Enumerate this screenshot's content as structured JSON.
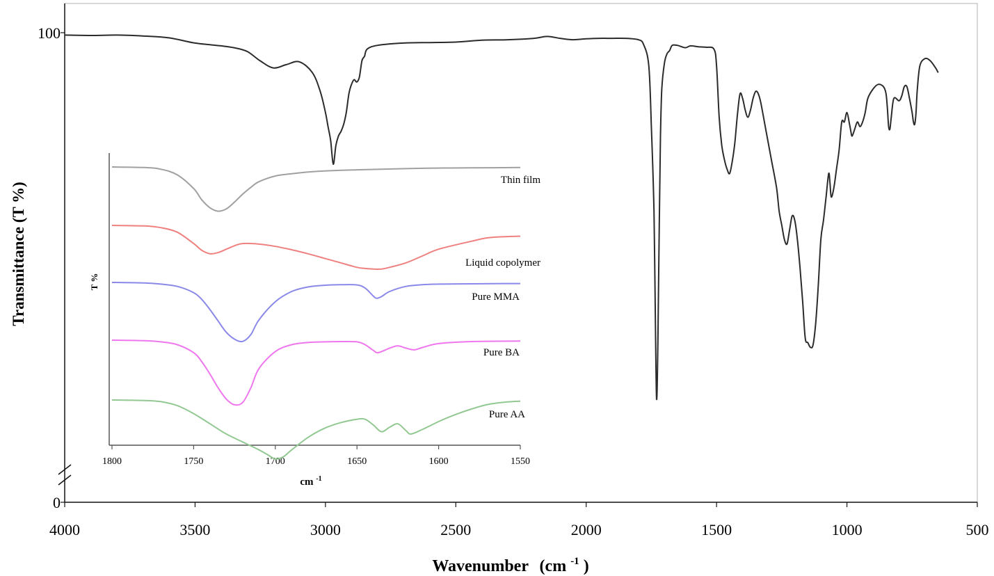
{
  "chart_data": [
    {
      "type": "line",
      "title": "",
      "xlabel": "Wavenumber",
      "xlabel_unit": "(cm",
      "xlabel_unit_sup": "-1",
      "xlabel_unit_close": ")",
      "ylabel": "Transmittance  (T %)",
      "xlim": [
        4000,
        500
      ],
      "x_reversed": true,
      "ylim": [
        0,
        100
      ],
      "y_axis_break": true,
      "grid": false,
      "x_ticks": [
        4000,
        3500,
        3000,
        2500,
        2000,
        1500,
        1000,
        500
      ],
      "x_tick_labels": [
        "4000",
        "3500",
        "3000",
        "2500",
        "2000",
        "1500",
        "1000",
        "500"
      ],
      "y_ticks": [
        0,
        100
      ],
      "y_tick_labels": [
        "0",
        "100"
      ],
      "series": [
        {
          "color": "#2b2b2b",
          "x": [
            4000,
            3900,
            3800,
            3700,
            3600,
            3500,
            3400,
            3350,
            3300,
            3250,
            3200,
            3150,
            3100,
            3050,
            3020,
            3000,
            2990,
            2980,
            2970,
            2960,
            2950,
            2940,
            2930,
            2920,
            2910,
            2900,
            2890,
            2880,
            2870,
            2860,
            2850,
            2840,
            2800,
            2700,
            2600,
            2500,
            2400,
            2300,
            2200,
            2150,
            2100,
            2050,
            2000,
            1950,
            1900,
            1850,
            1800,
            1780,
            1760,
            1750,
            1740,
            1735,
            1730,
            1725,
            1720,
            1715,
            1710,
            1700,
            1690,
            1680,
            1670,
            1650,
            1620,
            1600,
            1570,
            1540,
            1510,
            1500,
            1490,
            1480,
            1470,
            1460,
            1450,
            1440,
            1430,
            1420,
            1410,
            1400,
            1390,
            1380,
            1370,
            1360,
            1350,
            1340,
            1330,
            1310,
            1290,
            1270,
            1260,
            1250,
            1240,
            1230,
            1220,
            1210,
            1200,
            1190,
            1180,
            1170,
            1160,
            1150,
            1140,
            1130,
            1120,
            1110,
            1100,
            1090,
            1080,
            1070,
            1065,
            1060,
            1050,
            1040,
            1030,
            1020,
            1010,
            1000,
            990,
            985,
            980,
            970,
            960,
            950,
            940,
            930,
            920,
            900,
            880,
            860,
            850,
            845,
            840,
            835,
            830,
            820,
            800,
            790,
            780,
            770,
            760,
            750,
            745,
            740,
            735,
            730,
            720,
            700,
            680,
            660,
            650
          ],
          "values": [
            99.5,
            99.4,
            99.5,
            99.3,
            98.9,
            97.8,
            97.2,
            96.8,
            96,
            94,
            92.5,
            93.2,
            93.8,
            91.5,
            87.5,
            83,
            80,
            77,
            72,
            76,
            78,
            79,
            80.5,
            83,
            87,
            89,
            90,
            89.5,
            90.5,
            94,
            95,
            96.5,
            97.3,
            97.8,
            97.9,
            98,
            98.4,
            98.5,
            98.8,
            99.2,
            98.8,
            98.5,
            98.7,
            98.8,
            98.8,
            98.8,
            98.5,
            97.5,
            93,
            80,
            62,
            40,
            22,
            34,
            58,
            78,
            88,
            93.5,
            95.5,
            96.2,
            97.3,
            97.3,
            96.8,
            97.2,
            97,
            96.9,
            96.5,
            93,
            82,
            76,
            73,
            71,
            70,
            72.5,
            76.5,
            82.5,
            87,
            86,
            83.5,
            82,
            83.5,
            86,
            87.5,
            87,
            85,
            79,
            73,
            67,
            62,
            59,
            56,
            55,
            58,
            61,
            60,
            56,
            50,
            43,
            35,
            34,
            33,
            33.5,
            38,
            46,
            56,
            60,
            65,
            70,
            68,
            65,
            67,
            71,
            75,
            81,
            81,
            83,
            80.5,
            79,
            78,
            79.5,
            81,
            80,
            81,
            83,
            86,
            88,
            89,
            88.5,
            87,
            84,
            80,
            79.5,
            82,
            86,
            85.5,
            86.5,
            88.5,
            88.5,
            86,
            83,
            81,
            80.5,
            83,
            88,
            93,
            94.5,
            94,
            92.5,
            91.5
          ]
        }
      ]
    },
    {
      "type": "line",
      "title": "",
      "xlabel": "cm",
      "xlabel_sup": "-1",
      "ylabel": "T %",
      "xlim": [
        1800,
        1550
      ],
      "x_reversed": true,
      "grid": false,
      "x_ticks": [
        1800,
        1750,
        1700,
        1650,
        1600,
        1550
      ],
      "x_tick_labels": [
        "1800",
        "1750",
        "1700",
        "1650",
        "1600",
        "1550"
      ],
      "series": [
        {
          "name": "Thin film",
          "color": "#a0a0a0",
          "x": [
            1800,
            1780,
            1770,
            1760,
            1750,
            1745,
            1740,
            1735,
            1730,
            1725,
            1720,
            1715,
            1710,
            1700,
            1690,
            1680,
            1670,
            1650,
            1620,
            1600,
            1580,
            1550
          ],
          "values": [
            0,
            0.5,
            2,
            7,
            19,
            29,
            36,
            39,
            37,
            31,
            24,
            18,
            13,
            8,
            6,
            4.5,
            3.5,
            2.5,
            1.5,
            1,
            0.8,
            0.5
          ]
        },
        {
          "name": "Liquid copolymer",
          "color": "#ef8080",
          "x": [
            1800,
            1780,
            1770,
            1760,
            1750,
            1745,
            1740,
            1735,
            1730,
            1725,
            1720,
            1710,
            1700,
            1690,
            1680,
            1670,
            1660,
            1650,
            1645,
            1640,
            1635,
            1630,
            1620,
            1610,
            1600,
            1580,
            1570,
            1560,
            1550
          ],
          "values": [
            0,
            0.5,
            2,
            6,
            16,
            22,
            25,
            24,
            21,
            18,
            16,
            16.5,
            18.5,
            21.5,
            25,
            29,
            33,
            37,
            38,
            38.5,
            38.5,
            37,
            33,
            27,
            21,
            14,
            11,
            10,
            9.5
          ]
        },
        {
          "name": "Pure MMA",
          "color": "#8a88e8",
          "x": [
            1800,
            1780,
            1770,
            1760,
            1750,
            1745,
            1740,
            1735,
            1730,
            1725,
            1720,
            1715,
            1710,
            1700,
            1690,
            1680,
            1670,
            1660,
            1650,
            1645,
            1640,
            1638,
            1635,
            1630,
            1620,
            1610,
            1600,
            1580,
            1560,
            1550
          ],
          "values": [
            0,
            0.5,
            1.5,
            3.5,
            9,
            15,
            24,
            34,
            44,
            50,
            52,
            46,
            33,
            17,
            8,
            4,
            2.5,
            2,
            2.2,
            5,
            12,
            14,
            12.5,
            8,
            3.5,
            2,
            1.5,
            1.2,
            1,
            1
          ]
        },
        {
          "name": "Pure BA",
          "color": "#ee77ee",
          "x": [
            1800,
            1780,
            1770,
            1760,
            1750,
            1745,
            1740,
            1735,
            1730,
            1725,
            1720,
            1715,
            1710,
            1700,
            1690,
            1680,
            1670,
            1660,
            1650,
            1645,
            1640,
            1637,
            1630,
            1625,
            1620,
            1615,
            1610,
            1600,
            1580,
            1550
          ],
          "values": [
            0,
            0.5,
            1.5,
            4,
            11,
            19,
            30,
            42,
            52,
            57,
            55,
            42,
            25,
            10,
            4,
            2,
            1.5,
            1.2,
            1.5,
            4,
            9,
            11,
            7,
            5,
            7,
            8.5,
            6.5,
            3,
            1.2,
            0.8
          ]
        },
        {
          "name": "Pure AA",
          "color": "#92c892",
          "x": [
            1800,
            1780,
            1770,
            1760,
            1750,
            1740,
            1730,
            1720,
            1710,
            1705,
            1700,
            1695,
            1690,
            1680,
            1670,
            1660,
            1650,
            1645,
            1640,
            1635,
            1630,
            1625,
            1620,
            1617,
            1610,
            1600,
            1590,
            1580,
            1570,
            1560,
            1550
          ],
          "values": [
            0,
            0.5,
            1.5,
            5,
            12,
            21,
            30,
            37,
            44,
            48,
            52,
            50,
            44,
            33,
            25,
            20,
            17,
            17,
            22,
            28,
            24,
            21,
            27,
            30,
            26,
            19,
            13,
            8,
            4,
            2,
            1
          ]
        }
      ]
    }
  ]
}
